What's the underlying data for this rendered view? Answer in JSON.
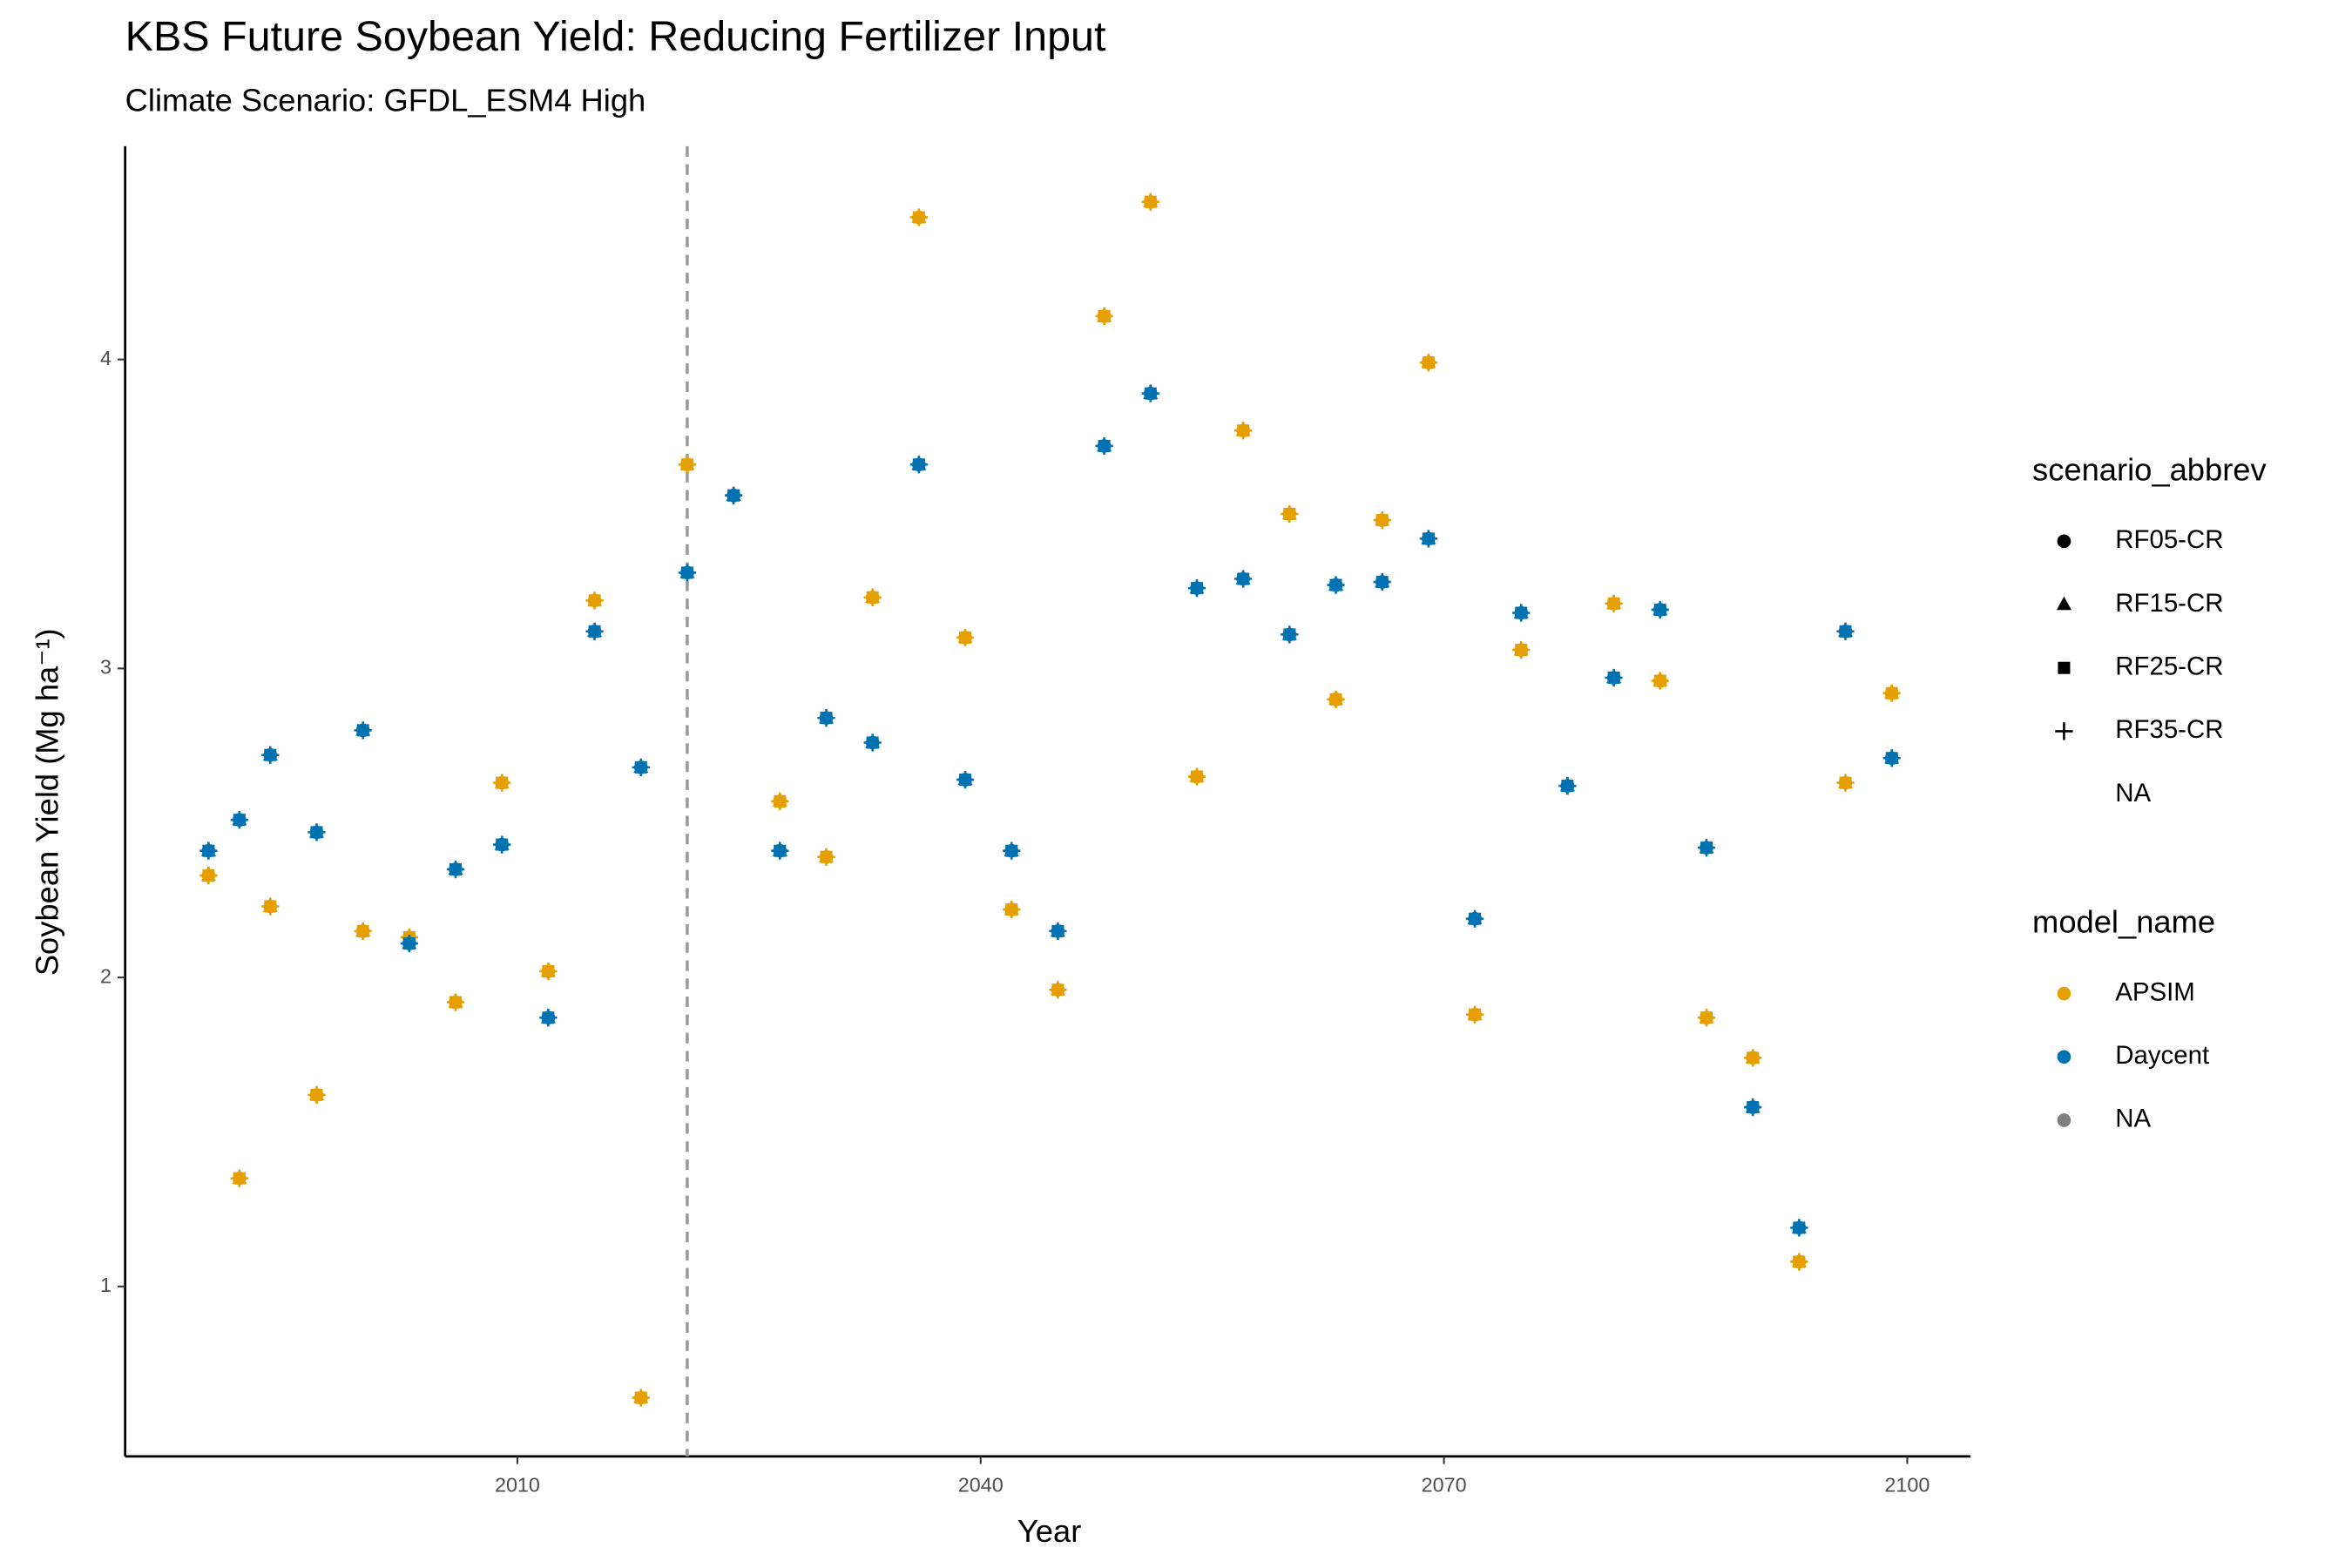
{
  "chart_data": {
    "type": "scatter",
    "title": "KBS Future Soybean Yield: Reducing Fertilizer Input",
    "subtitle": "Climate Scenario: GFDL_ESM4 High",
    "x_label": "Year",
    "y_label": "Soybean Yield (Mg ha⁻¹)",
    "xlim": [
      1984.6,
      2104.1
    ],
    "ylim": [
      0.45,
      4.69
    ],
    "xticks": [
      2010,
      2040,
      2070,
      2100
    ],
    "yticks": [
      1,
      2,
      3,
      4
    ],
    "grid": false,
    "vline": 2021,
    "series": [
      {
        "name": "APSIM",
        "color": "#E69F00",
        "x": [
          1990,
          1992,
          1994,
          1997,
          2000,
          2003,
          2006,
          2009,
          2012,
          2015,
          2018,
          2021,
          2024,
          2027,
          2030,
          2033,
          2036,
          2039,
          2042,
          2045,
          2048,
          2051,
          2054,
          2057,
          2060,
          2063,
          2066,
          2069,
          2072,
          2075,
          2078,
          2081,
          2084,
          2087,
          2090,
          2093,
          2096,
          2099
        ],
        "values": [
          2.33,
          1.35,
          2.23,
          1.62,
          2.15,
          2.13,
          1.92,
          2.63,
          2.02,
          3.22,
          0.64,
          3.66,
          3.56,
          2.57,
          2.39,
          3.23,
          4.46,
          3.1,
          2.22,
          1.96,
          4.14,
          4.51,
          2.65,
          3.77,
          3.5,
          2.9,
          3.48,
          3.99,
          1.88,
          3.06,
          2.62,
          3.21,
          2.96,
          1.87,
          1.74,
          1.08,
          2.63,
          2.92
        ]
      },
      {
        "name": "Daycent",
        "color": "#0072B2",
        "x": [
          1990,
          1992,
          1994,
          1997,
          2000,
          2003,
          2006,
          2009,
          2012,
          2015,
          2018,
          2021,
          2024,
          2027,
          2030,
          2033,
          2036,
          2039,
          2042,
          2045,
          2048,
          2051,
          2054,
          2057,
          2060,
          2063,
          2066,
          2069,
          2072,
          2075,
          2078,
          2081,
          2084,
          2087,
          2090,
          2093,
          2096,
          2099
        ],
        "values": [
          2.41,
          2.51,
          2.72,
          2.47,
          2.8,
          2.11,
          2.35,
          2.43,
          1.87,
          3.12,
          2.68,
          3.31,
          3.56,
          2.41,
          2.84,
          2.76,
          3.66,
          2.64,
          2.41,
          2.15,
          3.72,
          3.89,
          3.26,
          3.29,
          3.11,
          3.27,
          3.28,
          3.42,
          2.19,
          3.18,
          2.62,
          2.97,
          3.19,
          2.42,
          1.58,
          1.19,
          3.12,
          2.71
        ]
      }
    ],
    "shape_legend": {
      "title": "scenario_abbrev",
      "items": [
        {
          "label": "RF05-CR",
          "shape": "circle"
        },
        {
          "label": "RF15-CR",
          "shape": "triangle"
        },
        {
          "label": "RF25-CR",
          "shape": "square"
        },
        {
          "label": "RF35-CR",
          "shape": "plus"
        },
        {
          "label": "NA"
        }
      ]
    },
    "color_legend": {
      "title": "model_name",
      "na_label": "NA",
      "na_color": "#7F7F7F"
    }
  }
}
